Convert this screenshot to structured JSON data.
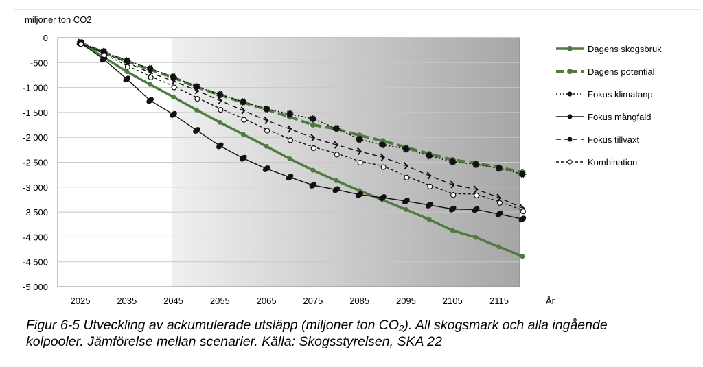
{
  "chart_data": {
    "type": "line",
    "ylabel": "miljoner ton CO2",
    "xlabel": "År",
    "ylim": [
      -5000,
      0
    ],
    "yticks": [
      0,
      -500,
      -1000,
      -1500,
      -2000,
      -2500,
      -3000,
      -3500,
      -4000,
      -4500,
      -5000
    ],
    "ytick_labels": [
      "0",
      "-500",
      "-1 000",
      "-1 500",
      "-2 000",
      "-2 500",
      "-3 000",
      "-3 500",
      "-4 000",
      "-4 500",
      "-5 000"
    ],
    "xticks": [
      2025,
      2035,
      2045,
      2055,
      2065,
      2075,
      2085,
      2095,
      2105,
      2115
    ],
    "x": [
      2025,
      2030,
      2035,
      2040,
      2045,
      2050,
      2055,
      2060,
      2065,
      2070,
      2075,
      2080,
      2085,
      2090,
      2095,
      2100,
      2105,
      2110,
      2115,
      2120
    ],
    "legend_position": "right",
    "grid": true,
    "series": [
      {
        "name": "Dagens skogsbruk",
        "color": "#4f7a42",
        "style": "solid-thick",
        "values": [
          -100,
          -390,
          -680,
          -940,
          -1190,
          -1450,
          -1700,
          -1940,
          -2180,
          -2430,
          -2660,
          -2870,
          -3070,
          -3260,
          -3450,
          -3650,
          -3870,
          -4010,
          -4200,
          -4390
        ]
      },
      {
        "name": "Dagens potential",
        "color": "#4f7a42",
        "style": "dash-thick",
        "values": [
          -100,
          -290,
          -470,
          -640,
          -800,
          -990,
          -1150,
          -1300,
          -1440,
          -1590,
          -1750,
          -1830,
          -1960,
          -2070,
          -2200,
          -2330,
          -2450,
          -2520,
          -2600,
          -2700
        ]
      },
      {
        "name": "Fokus klimatanp.",
        "color": "#111111",
        "style": "dotted",
        "values": [
          -100,
          -280,
          -460,
          -620,
          -790,
          -980,
          -1140,
          -1290,
          -1430,
          -1530,
          -1630,
          -1820,
          -2040,
          -2150,
          -2230,
          -2370,
          -2490,
          -2540,
          -2620,
          -2740
        ]
      },
      {
        "name": "Fokus mångfald",
        "color": "#111111",
        "style": "solid",
        "values": [
          -100,
          -430,
          -830,
          -1260,
          -1540,
          -1860,
          -2170,
          -2420,
          -2630,
          -2800,
          -2960,
          -3050,
          -3150,
          -3210,
          -3280,
          -3360,
          -3440,
          -3450,
          -3540,
          -3640
        ]
      },
      {
        "name": "Fokus tillväxt",
        "color": "#111111",
        "style": "dash",
        "values": [
          -100,
          -300,
          -500,
          -700,
          -870,
          -1060,
          -1260,
          -1460,
          -1660,
          -1830,
          -2010,
          -2150,
          -2280,
          -2400,
          -2570,
          -2770,
          -2950,
          -3040,
          -3210,
          -3420
        ]
      },
      {
        "name": "Kombination",
        "color": "#111111",
        "style": "short-dash",
        "values": [
          -100,
          -320,
          -560,
          -770,
          -970,
          -1200,
          -1420,
          -1620,
          -1840,
          -2030,
          -2190,
          -2320,
          -2480,
          -2570,
          -2780,
          -2960,
          -3130,
          -3140,
          -3290,
          -3460
        ]
      }
    ],
    "shaded_from": 2045
  },
  "caption": {
    "line1": "Figur 6-5 Utveckling av ackumulerade utsläpp (miljoner ton CO₂). All skogsmark och alla ingående",
    "line2": "kolpooler. Jämförelse mellan scenarier. Källa: Skogsstyrelsen, SKA 22"
  }
}
